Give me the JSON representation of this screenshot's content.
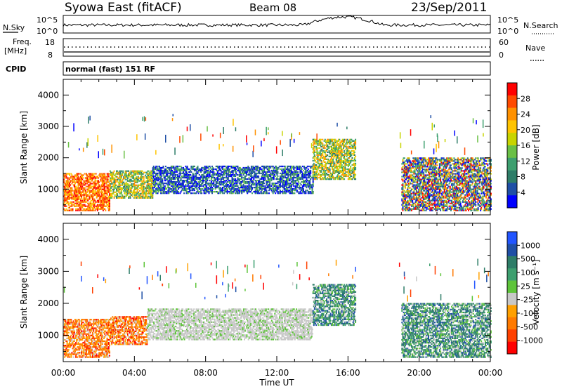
{
  "header": {
    "title": "Syowa East (fitACF)",
    "beam": "Beam 08",
    "date": "23/Sep/2011"
  },
  "nsky_panel": {
    "left_label": "N.Sky",
    "left_ticks": [
      "10^5",
      "10^0"
    ],
    "right_label": "N.Search",
    "right_ticks": [
      "10^5",
      "10^0"
    ]
  },
  "freq_panel": {
    "left_label_line1": "Freq.",
    "left_label_line2": "[MHz]",
    "left_ticks": [
      "18",
      "8"
    ],
    "right_label": "Nave",
    "right_ticks": [
      "60",
      "0"
    ]
  },
  "cpid_panel": {
    "label": "CPID",
    "mode": "normal (fast) 151 RF"
  },
  "x_axis": {
    "label": "Time UT",
    "ticks": [
      "00:00",
      "04:00",
      "08:00",
      "12:00",
      "16:00",
      "20:00",
      "00:00"
    ]
  },
  "chart_data": [
    {
      "type": "heatmap",
      "title": "",
      "xlabel": "",
      "ylabel": "Slant Range [km]",
      "y_ticks": [
        "1000",
        "2000",
        "3000",
        "4000"
      ],
      "xlim_hours": [
        0,
        24
      ],
      "ylim_km": [
        180,
        4500
      ],
      "colorbar": {
        "label": "Power [dB]",
        "ticks": [
          "28",
          "24",
          "20",
          "16",
          "12",
          "8",
          "4"
        ],
        "colors": [
          "#ff0000",
          "#ff4a00",
          "#ff9100",
          "#ffc400",
          "#c8d400",
          "#6ac046",
          "#3d9f6f",
          "#2e7d68",
          "#1f4fa6",
          "#0000ff"
        ]
      },
      "regions": [
        {
          "t0": 0.0,
          "t1": 2.6,
          "r0": 300,
          "r1": 1500,
          "value_class": "high"
        },
        {
          "t0": 2.6,
          "t1": 5.0,
          "r0": 700,
          "r1": 1600,
          "value_class": "mid"
        },
        {
          "t0": 5.0,
          "t1": 14.0,
          "r0": 850,
          "r1": 1750,
          "value_class": "low"
        },
        {
          "t0": 14.0,
          "t1": 16.4,
          "r0": 1300,
          "r1": 2600,
          "value_class": "mid"
        },
        {
          "t0": 19.0,
          "t1": 24.0,
          "r0": 300,
          "r1": 2000,
          "value_class": "mixed"
        }
      ]
    },
    {
      "type": "heatmap",
      "title": "",
      "xlabel": "Time UT",
      "ylabel": "Slant Range [km]",
      "y_ticks": [
        "1000",
        "2000",
        "3000",
        "4000"
      ],
      "xlim_hours": [
        0,
        24
      ],
      "ylim_km": [
        180,
        4500
      ],
      "colorbar": {
        "label": "Velocity [m s⁻¹]",
        "ticks": [
          "1000",
          "500",
          "100",
          "25",
          "-25",
          "-100",
          "-500",
          "-1000"
        ],
        "colors": [
          "#2255ff",
          "#1f4fa6",
          "#2e7d68",
          "#3d9f6f",
          "#5ec43a",
          "#c8c8c8",
          "#ffa000",
          "#ff7a00",
          "#ff4000",
          "#ff0000"
        ]
      },
      "regions": [
        {
          "t0": 0.0,
          "t1": 2.6,
          "r0": 300,
          "r1": 1500,
          "value_class": "negative"
        },
        {
          "t0": 2.6,
          "t1": 4.7,
          "r0": 700,
          "r1": 1600,
          "value_class": "negative"
        },
        {
          "t0": 4.7,
          "t1": 14.0,
          "r0": 850,
          "r1": 1800,
          "value_class": "ground"
        },
        {
          "t0": 14.0,
          "t1": 16.4,
          "r0": 1300,
          "r1": 2600,
          "value_class": "positive"
        },
        {
          "t0": 19.0,
          "t1": 24.0,
          "r0": 300,
          "r1": 2000,
          "value_class": "positive"
        }
      ]
    }
  ],
  "noise_trace": {
    "base_level": 0.45,
    "bump_start_hour": 13.5,
    "bump_end_hour": 18.0,
    "bump_level": 0.95
  }
}
